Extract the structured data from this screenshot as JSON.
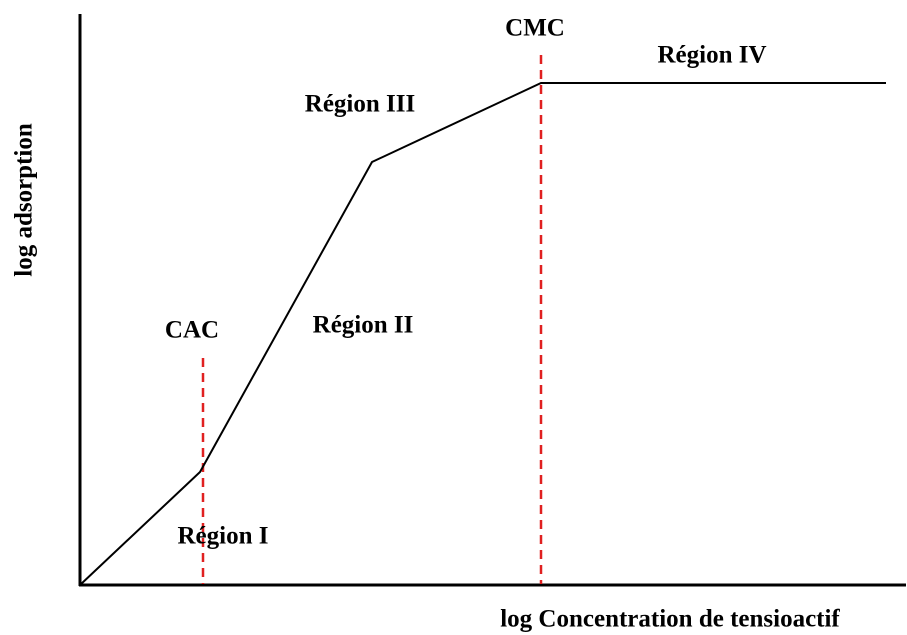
{
  "diagram": {
    "x_axis_label": "log Concentration de tensioactif",
    "y_axis_label": "log adsorption",
    "markers": [
      "CAC",
      "CMC"
    ],
    "regions": [
      "Région I",
      "Région II",
      "Région III",
      "Région IV"
    ]
  }
}
